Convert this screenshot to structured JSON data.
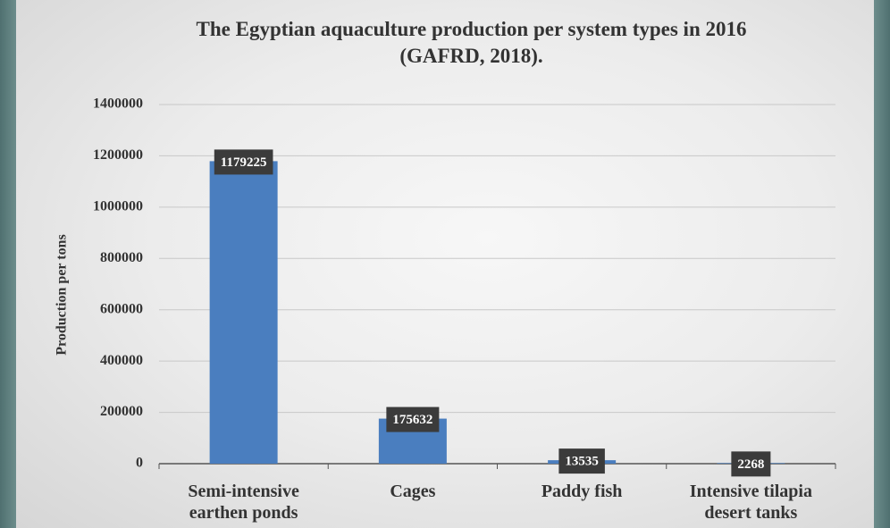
{
  "chart_data": {
    "type": "bar",
    "title": "The Egyptian aquaculture production per system types in 2016 (GAFRD, 2018).",
    "y_label": "Production per tons",
    "categories": [
      "Semi-intensive earthen ponds",
      "Cages",
      "Paddy fish",
      "Intensive tilapia desert tanks"
    ],
    "values": [
      1179225,
      175632,
      13535,
      2268
    ],
    "color": "#4a7ebf",
    "ylim": [
      0,
      1400000
    ],
    "yticks": [
      0,
      200000,
      400000,
      600000,
      800000,
      1000000,
      1200000,
      1400000
    ],
    "grid": true
  }
}
